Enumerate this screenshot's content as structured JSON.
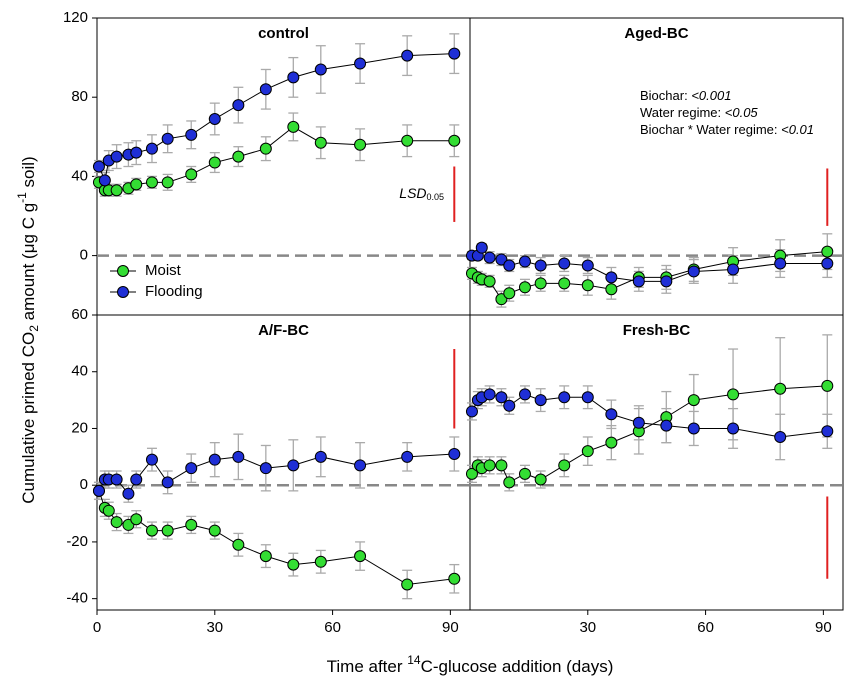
{
  "ylabel": [
    "Cumulative primed CO",
    "2",
    " amount (μg C g",
    "-1",
    " soil)"
  ],
  "xlabel": [
    "Time after ",
    "14",
    "C-glucose addition (days)"
  ],
  "chart_data": [
    {
      "type": "scatter-line",
      "title": "control",
      "xlim": [
        0,
        95
      ],
      "ylim": [
        -30,
        120
      ],
      "yticks": [
        0,
        40,
        80,
        120
      ],
      "reference_line": 0,
      "x": [
        0.5,
        2,
        3,
        5,
        8,
        10,
        14,
        18,
        24,
        30,
        36,
        43,
        50,
        57,
        67,
        79,
        91
      ],
      "series": [
        {
          "name": "Moist",
          "color": "#33dd33",
          "values": [
            37,
            33,
            33,
            33,
            34,
            36,
            37,
            37,
            41,
            47,
            50,
            54,
            65,
            57,
            56,
            58,
            58
          ],
          "errors": [
            3,
            3,
            3,
            3,
            3,
            3,
            3,
            4,
            4,
            5,
            5,
            6,
            7,
            8,
            8,
            8,
            8
          ]
        },
        {
          "name": "Flooding",
          "color": "#1f2fd6",
          "values": [
            45,
            38,
            48,
            50,
            51,
            52,
            54,
            59,
            61,
            69,
            76,
            84,
            90,
            94,
            97,
            101,
            102
          ],
          "errors": [
            3,
            4,
            5,
            6,
            6,
            6,
            7,
            7,
            7,
            8,
            9,
            10,
            10,
            12,
            10,
            10,
            10
          ]
        }
      ],
      "legend": "lower left",
      "lsd": {
        "label": "LSD",
        "subscript": "0.05",
        "x": 91,
        "from": 17,
        "to": 45,
        "color": "#e02020"
      }
    },
    {
      "type": "scatter-line",
      "title": "Aged-BC",
      "xlim": [
        0,
        95
      ],
      "ylim": [
        -30,
        120
      ],
      "reference_line": 0,
      "x": [
        0.5,
        2,
        3,
        5,
        8,
        10,
        14,
        18,
        24,
        30,
        36,
        43,
        50,
        57,
        67,
        79,
        91
      ],
      "series": [
        {
          "color": "#33dd33",
          "values": [
            -9,
            -11,
            -12,
            -13,
            -22,
            -19,
            -16,
            -14,
            -14,
            -15,
            -17,
            -11,
            -11,
            -7,
            -3,
            0,
            2
          ],
          "errors": [
            3,
            3,
            3,
            3,
            4,
            4,
            4,
            4,
            4,
            5,
            5,
            5,
            6,
            6,
            7,
            8,
            9
          ]
        },
        {
          "color": "#1f2fd6",
          "values": [
            0,
            0,
            4,
            -1,
            -2,
            -5,
            -3,
            -5,
            -4,
            -5,
            -11,
            -13,
            -13,
            -8,
            -7,
            -4,
            -4
          ],
          "errors": [
            2,
            2,
            2,
            3,
            3,
            3,
            3,
            4,
            4,
            4,
            5,
            5,
            6,
            6,
            7,
            7,
            7
          ]
        }
      ],
      "stats": [
        {
          "label": "Biochar: ",
          "value": "<0.001"
        },
        {
          "label": "Water regime: ",
          "value": "<0.05"
        },
        {
          "label": "Biochar * Water regime: ",
          "value": "<0.01"
        }
      ],
      "lsd": {
        "x": 91,
        "from": 15,
        "to": 44,
        "color": "#e02020"
      }
    },
    {
      "type": "scatter-line",
      "title": "A/F-BC",
      "xlim": [
        0,
        95
      ],
      "ylim": [
        -44,
        60
      ],
      "yticks": [
        -40,
        -20,
        0,
        20,
        40,
        60
      ],
      "xticks": [
        0,
        30,
        60,
        90
      ],
      "reference_line": 0,
      "x": [
        0.5,
        2,
        3,
        5,
        8,
        10,
        14,
        18,
        24,
        30,
        36,
        43,
        50,
        57,
        67,
        79,
        91
      ],
      "series": [
        {
          "color": "#33dd33",
          "values": [
            -2,
            -8,
            -9,
            -13,
            -14,
            -12,
            -16,
            -16,
            -14,
            -16,
            -21,
            -25,
            -28,
            -27,
            -25,
            -35,
            -33
          ],
          "errors": [
            3,
            3,
            3,
            3,
            3,
            3,
            3,
            3,
            3,
            3,
            4,
            4,
            4,
            4,
            5,
            5,
            5
          ]
        },
        {
          "color": "#1f2fd6",
          "values": [
            -2,
            2,
            2,
            2,
            -3,
            2,
            9,
            1,
            6,
            9,
            10,
            6,
            7,
            10,
            7,
            10,
            11
          ],
          "errors": [
            3,
            3,
            3,
            3,
            3,
            3,
            4,
            4,
            5,
            6,
            8,
            8,
            9,
            7,
            8,
            5,
            6
          ]
        }
      ],
      "lsd": {
        "x": 91,
        "from": 20,
        "to": 48,
        "color": "#e02020"
      }
    },
    {
      "type": "scatter-line",
      "title": "Fresh-BC",
      "xlim": [
        0,
        95
      ],
      "ylim": [
        -44,
        60
      ],
      "xticks": [
        30,
        60,
        90
      ],
      "reference_line": 0,
      "x": [
        0.5,
        2,
        3,
        5,
        8,
        10,
        14,
        18,
        24,
        30,
        36,
        43,
        50,
        57,
        67,
        79,
        91
      ],
      "series": [
        {
          "color": "#33dd33",
          "values": [
            4,
            7,
            6,
            7,
            7,
            1,
            4,
            2,
            7,
            12,
            15,
            19,
            24,
            30,
            32,
            34,
            35
          ],
          "errors": [
            3,
            3,
            3,
            3,
            3,
            3,
            3,
            3,
            4,
            5,
            6,
            8,
            9,
            9,
            16,
            18,
            18
          ]
        },
        {
          "color": "#1f2fd6",
          "values": [
            26,
            30,
            31,
            32,
            31,
            28,
            32,
            30,
            31,
            31,
            25,
            22,
            21,
            20,
            20,
            17,
            19
          ],
          "errors": [
            3,
            3,
            3,
            3,
            3,
            3,
            3,
            4,
            4,
            4,
            5,
            6,
            6,
            6,
            7,
            8,
            6
          ]
        }
      ],
      "lsd": {
        "x": 91,
        "from": -33,
        "to": -4,
        "color": "#e02020"
      }
    }
  ]
}
